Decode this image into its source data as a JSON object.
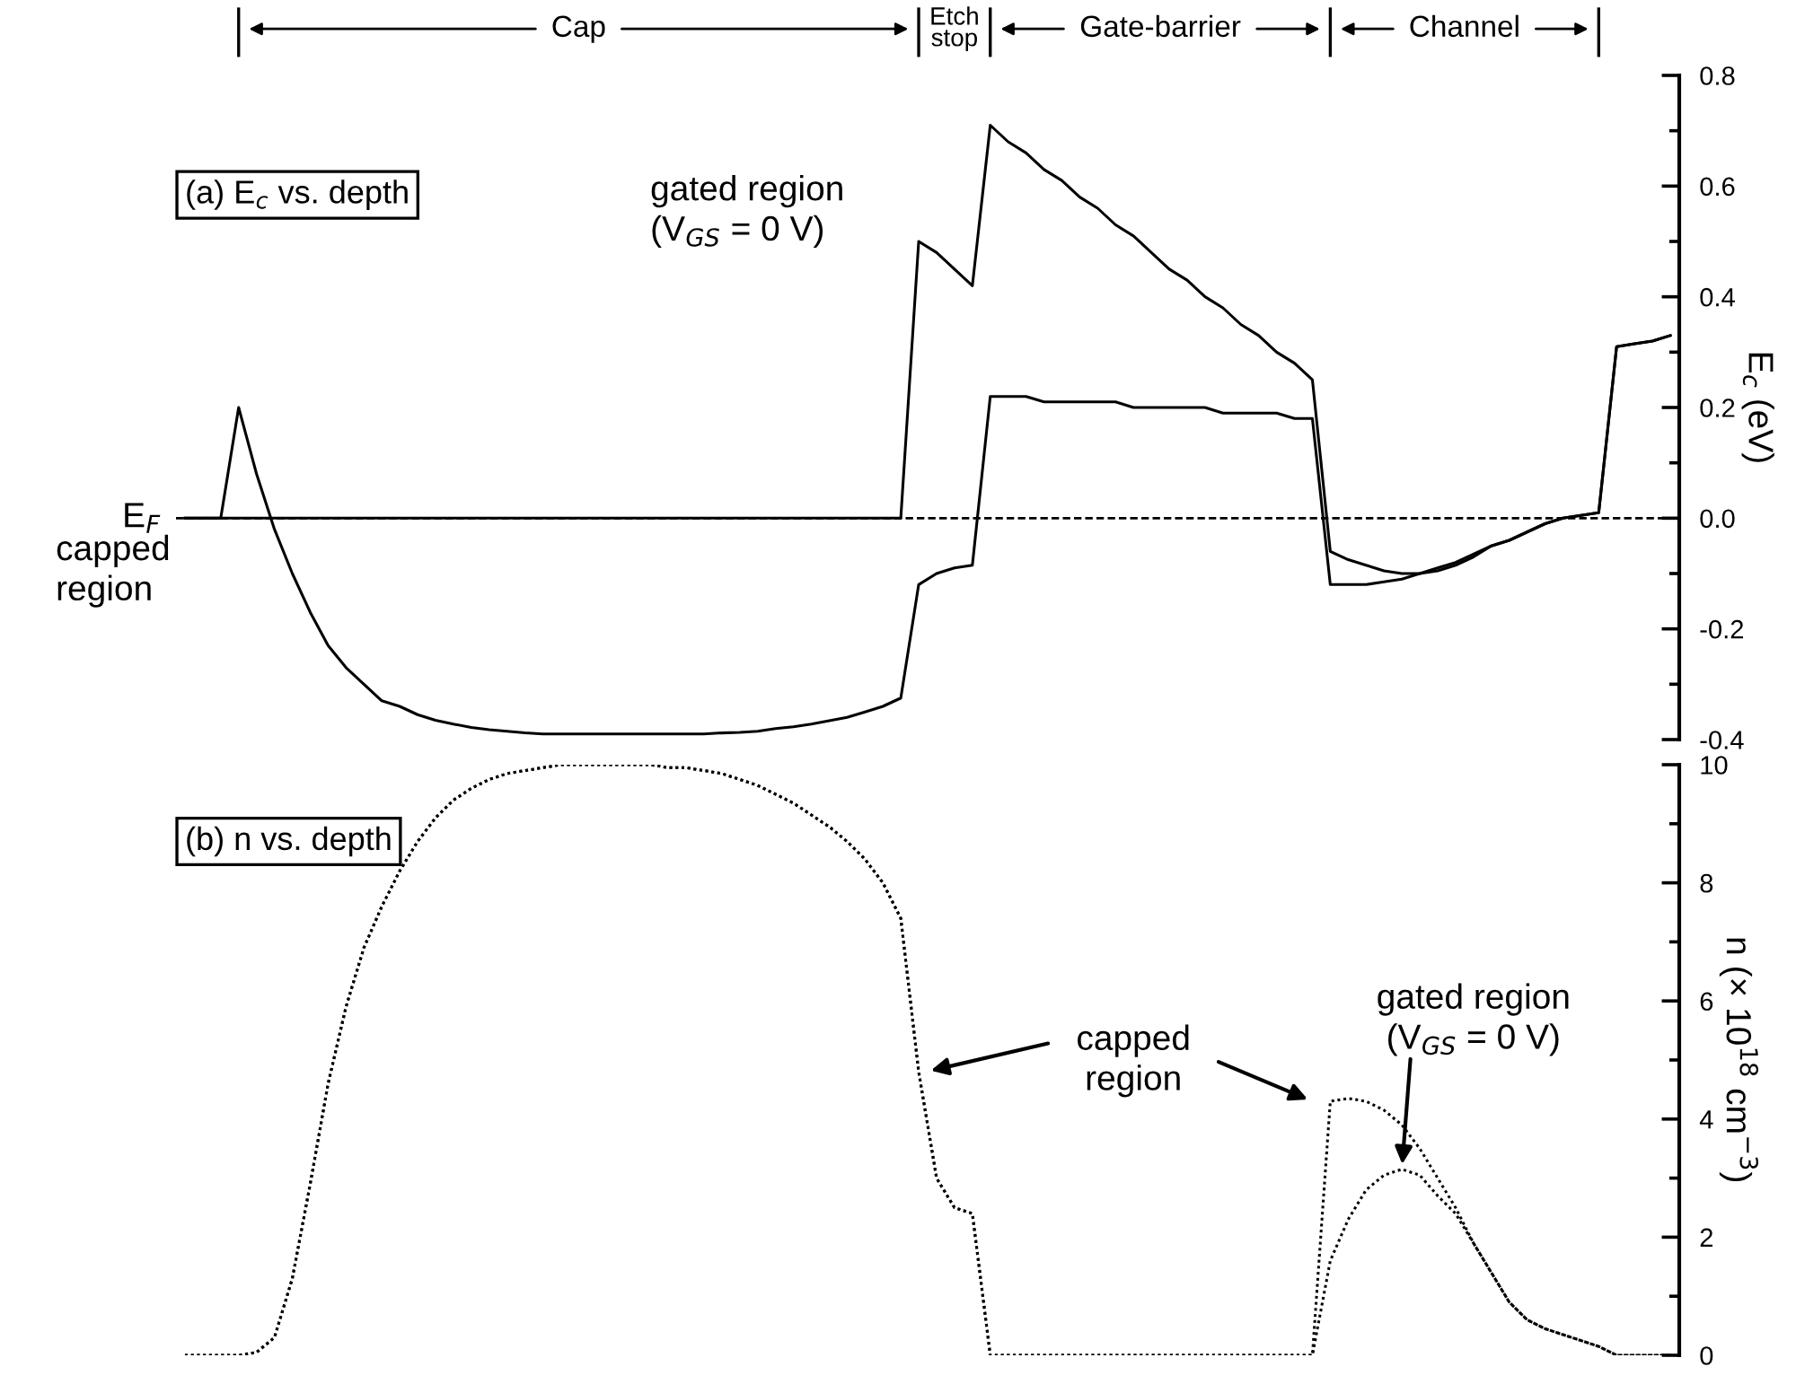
{
  "chart_data": [
    {
      "type": "line",
      "title": "(a) E$_{c}$ vs. depth",
      "ylabel": "E$_{c}$ (eV)",
      "categories": [
        null,
        null,
        null,
        null,
        null,
        null,
        null,
        null,
        null,
        null,
        null,
        null,
        null,
        null,
        null,
        null,
        null,
        null,
        null,
        null,
        null,
        null,
        null,
        null,
        null,
        null,
        null,
        null,
        null,
        null,
        null,
        null,
        null,
        null,
        null,
        null,
        null,
        null,
        null,
        null,
        null,
        null,
        null,
        null,
        null,
        null,
        null,
        null,
        null,
        null,
        null,
        null,
        null,
        null,
        null,
        null,
        null,
        null,
        null,
        null,
        null,
        null,
        null,
        null,
        null,
        null,
        null,
        null,
        null,
        null,
        null,
        null,
        null,
        null,
        null,
        null,
        null,
        null,
        null,
        null,
        null,
        null,
        null,
        null
      ],
      "series": [
        {
          "color": "#000000",
          "values": [
            0,
            0,
            0,
            0.2,
            0.08,
            -0.02,
            -0.1,
            -0.17,
            -0.23,
            -0.27,
            -0.3,
            -0.33,
            -0.34,
            -0.355,
            -0.365,
            -0.372,
            -0.378,
            -0.382,
            -0.385,
            -0.388,
            -0.39,
            -0.39,
            -0.39,
            -0.39,
            -0.39,
            -0.39,
            -0.39,
            -0.39,
            -0.39,
            -0.39,
            -0.388,
            -0.387,
            -0.385,
            -0.38,
            -0.377,
            -0.372,
            -0.366,
            -0.36,
            -0.35,
            -0.34,
            -0.325,
            -0.12,
            -0.1,
            -0.09,
            -0.085,
            0.22,
            0.22,
            0.22,
            0.21,
            0.21,
            0.21,
            0.21,
            0.21,
            0.2,
            0.2,
            0.2,
            0.2,
            0.2,
            0.19,
            0.19,
            0.19,
            0.19,
            0.18,
            0.18,
            -0.12,
            -0.12,
            -0.12,
            -0.115,
            -0.11,
            -0.1,
            -0.09,
            -0.08,
            -0.065,
            -0.05,
            -0.04,
            -0.025,
            -0.01,
            0,
            0.005,
            0.01,
            0.31,
            0.315,
            0.32,
            0.33
          ]
        },
        {
          "color": "#000000",
          "values": [
            0,
            0,
            0,
            0,
            0,
            0,
            0,
            0,
            0,
            0,
            0,
            0,
            0,
            0,
            0,
            0,
            0,
            0,
            0,
            0,
            0,
            0,
            0,
            0,
            0,
            0,
            0,
            0,
            0,
            0,
            0,
            0,
            0,
            0,
            0,
            0,
            0,
            0,
            0,
            0,
            0,
            0.5,
            0.48,
            0.45,
            0.42,
            0.71,
            0.68,
            0.66,
            0.63,
            0.61,
            0.58,
            0.56,
            0.53,
            0.51,
            0.48,
            0.45,
            0.43,
            0.4,
            0.38,
            0.35,
            0.33,
            0.3,
            0.28,
            0.25,
            -0.06,
            -0.075,
            -0.085,
            -0.095,
            -0.1,
            -0.1,
            -0.095,
            -0.085,
            -0.07,
            -0.05,
            -0.04,
            -0.025,
            -0.01,
            0,
            0.005,
            0.01,
            0.31,
            0.315,
            0.32,
            0.33
          ]
        }
      ],
      "ylim": [
        -0.4,
        0.8
      ],
      "yticks": [
        -0.4,
        {
          "value": -0.3,
          "label": null
        },
        -0.2,
        {
          "value": -0.1,
          "label": null
        },
        {
          "value": 0,
          "label": "0.0"
        },
        {
          "value": 0.1,
          "label": null
        },
        0.2,
        {
          "value": 0.3,
          "label": null
        },
        0.4,
        {
          "value": 0.5,
          "label": null
        },
        0.6,
        {
          "value": 0.7,
          "label": null
        },
        0.8
      ],
      "tick_labels": "y",
      "line_style": "solid",
      "ref_lines": [
        {
          "axis": "y",
          "value": 0,
          "label": "E$_{F}$",
          "line_style": "dashed",
          "color": "#000000"
        }
      ],
      "annotations": [
        "Cap",
        "Etch\nstop",
        "Gate-barrier",
        "Channel",
        "gated region\n(V$_{GS}$ = 0 V)",
        "capped\nregion"
      ]
    },
    {
      "type": "line",
      "title": "(b) n vs. depth",
      "ylabel": "n (× 10$^{18}$ cm$^{−3}$)",
      "categories": [
        null,
        null,
        null,
        null,
        null,
        null,
        null,
        null,
        null,
        null,
        null,
        null,
        null,
        null,
        null,
        null,
        null,
        null,
        null,
        null,
        null,
        null,
        null,
        null,
        null,
        null,
        null,
        null,
        null,
        null,
        null,
        null,
        null,
        null,
        null,
        null,
        null,
        null,
        null,
        null,
        null,
        null,
        null,
        null,
        null,
        null,
        null,
        null,
        null,
        null,
        null,
        null,
        null,
        null,
        null,
        null,
        null,
        null,
        null,
        null,
        null,
        null,
        null,
        null,
        null,
        null,
        null,
        null,
        null,
        null,
        null,
        null,
        null,
        null,
        null,
        null,
        null,
        null,
        null,
        null,
        null,
        null,
        null,
        null
      ],
      "series": [
        {
          "color": "#000000",
          "values": [
            0,
            0,
            0,
            0,
            0.05,
            0.3,
            1.3,
            2.9,
            4.6,
            5.9,
            6.9,
            7.6,
            8.2,
            8.7,
            9.1,
            9.4,
            9.6,
            9.75,
            9.85,
            9.9,
            9.95,
            10,
            10,
            10,
            10,
            10,
            10,
            9.95,
            9.95,
            9.9,
            9.85,
            9.75,
            9.65,
            9.5,
            9.35,
            9.15,
            8.95,
            8.7,
            8.4,
            8.0,
            7.4,
            4.8,
            3.0,
            2.5,
            2.4,
            0,
            0,
            0,
            0,
            0,
            0,
            0,
            0,
            0,
            0,
            0,
            0,
            0,
            0,
            0,
            0,
            0,
            0,
            0,
            4.3,
            4.35,
            4.3,
            4.15,
            3.9,
            3.5,
            3.0,
            2.5,
            1.9,
            1.4,
            0.9,
            0.6,
            0.45,
            0.35,
            0.25,
            0.15,
            0,
            0,
            0,
            0
          ]
        },
        {
          "color": "#000000",
          "values": [
            0,
            0,
            0,
            0,
            0.05,
            0.3,
            1.3,
            2.9,
            4.6,
            5.9,
            6.9,
            7.6,
            8.2,
            8.7,
            9.1,
            9.4,
            9.6,
            9.75,
            9.85,
            9.9,
            9.95,
            10,
            10,
            10,
            10,
            10,
            10,
            9.95,
            9.95,
            9.9,
            9.85,
            9.75,
            9.65,
            9.5,
            9.35,
            9.15,
            8.95,
            8.7,
            8.4,
            8.0,
            7.4,
            4.8,
            3.0,
            2.5,
            2.4,
            0,
            0,
            0,
            0,
            0,
            0,
            0,
            0,
            0,
            0,
            0,
            0,
            0,
            0,
            0,
            0,
            0,
            0,
            0,
            1.6,
            2.3,
            2.8,
            3.05,
            3.15,
            3.05,
            2.7,
            2.4,
            1.9,
            1.4,
            0.9,
            0.6,
            0.45,
            0.35,
            0.25,
            0.15,
            0,
            0,
            0,
            0
          ]
        }
      ],
      "ylim": [
        0,
        10
      ],
      "yticks": [
        0,
        {
          "value": 1,
          "label": null
        },
        2,
        {
          "value": 3,
          "label": null
        },
        4,
        {
          "value": 5,
          "label": null
        },
        6,
        {
          "value": 7,
          "label": null
        },
        8,
        {
          "value": 9,
          "label": null
        },
        10
      ],
      "tick_labels": "y",
      "line_style": "dotted",
      "annotations": [
        "capped\nregion",
        "gated region\n(V$_{GS}$ = 0 V)"
      ]
    }
  ]
}
